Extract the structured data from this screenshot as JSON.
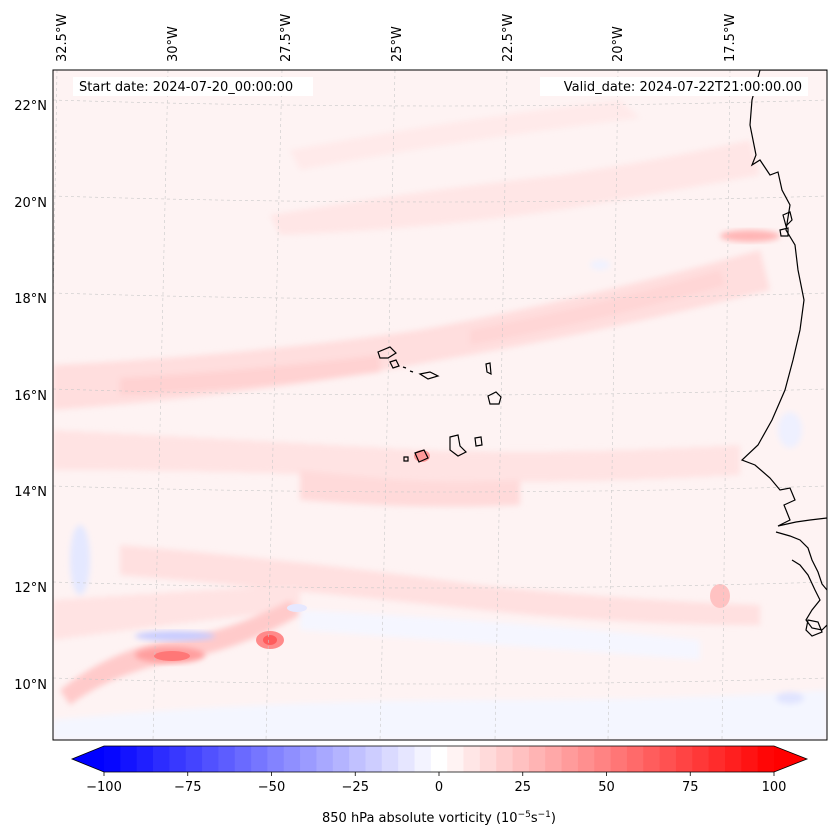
{
  "map": {
    "header": {
      "start_date": "Start date: 2024-07-20_00:00:00",
      "valid_date": "Valid_date: 2024-07-22T21:00:00.00"
    },
    "lon_labels": [
      "32.5°W",
      "30°W",
      "27.5°W",
      "25°W",
      "22.5°W",
      "20°W",
      "17.5°W"
    ],
    "lat_labels": [
      "22°N",
      "20°N",
      "18°N",
      "16°N",
      "14°N",
      "12°N",
      "10°N"
    ],
    "field": "850 hPa absolute vorticity",
    "features": [
      "Cape Verde islands",
      "West African coastline (Senegal, Gambia, Guinea-Bissau)"
    ]
  },
  "colorbar": {
    "ticks": [
      "−100",
      "−75",
      "−50",
      "−25",
      "0",
      "25",
      "50",
      "75",
      "100"
    ],
    "label_prefix": "850 hPa absolute vorticity (10",
    "label_exp1": "−5",
    "label_mid": "s",
    "label_exp2": "−1",
    "label_suffix": ")",
    "range": [
      -100,
      100
    ],
    "levels": 41,
    "colormap": "bwr",
    "negative_color": "#0000ff",
    "neutral_color": "#ffffff",
    "positive_color": "#ff0000"
  },
  "colors": {
    "coastline": "#000000",
    "gridline": "#c8c8c8",
    "weak_positive": "#fff0f0",
    "moderate_positive": "#ffcfcf",
    "weak_negative": "#f2f4ff"
  }
}
